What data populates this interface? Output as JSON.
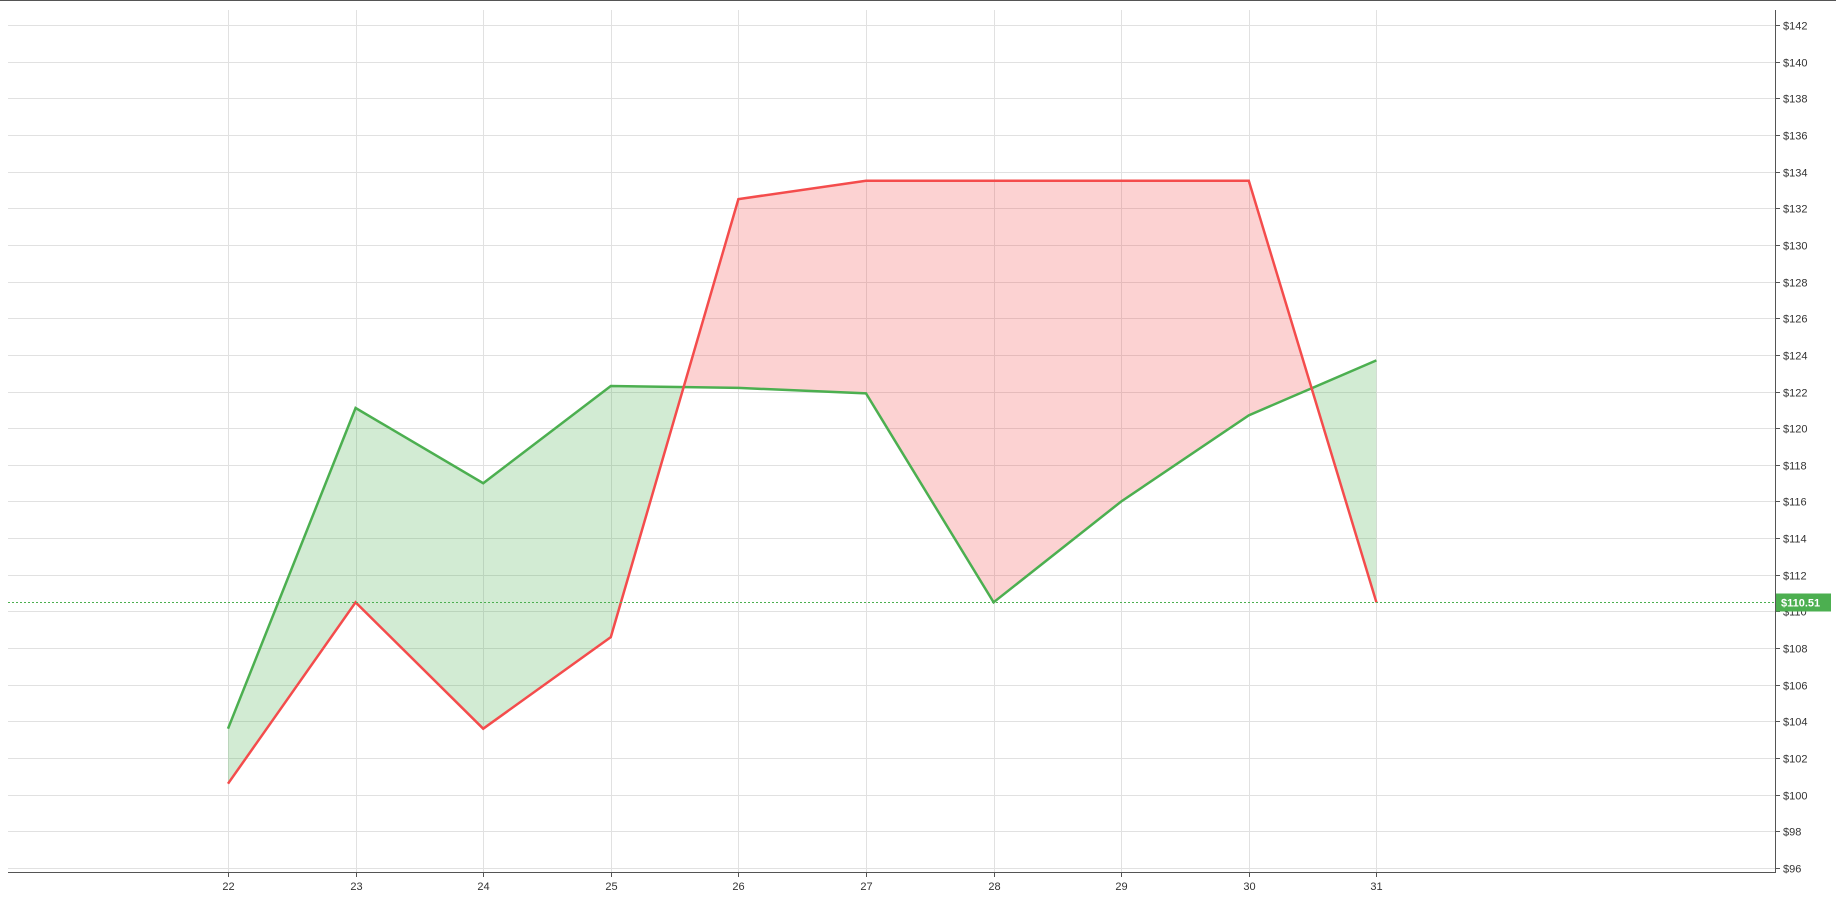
{
  "chart_data": {
    "type": "line",
    "title": "",
    "xlabel": "",
    "ylabel": "",
    "categories": [
      "22",
      "23",
      "24",
      "25",
      "26",
      "27",
      "28",
      "29",
      "30",
      "31"
    ],
    "series": [
      {
        "color": "#4caf50",
        "values": [
          103.6,
          121.1,
          117.0,
          122.3,
          122.2,
          121.9,
          110.5,
          116.0,
          120.7,
          123.7
        ]
      },
      {
        "color": "#f44c4c",
        "values": [
          100.6,
          110.5,
          103.6,
          108.6,
          132.5,
          133.5,
          133.5,
          133.5,
          133.5,
          110.5
        ]
      }
    ],
    "fill_between": {
      "above_color": "#4caf50",
      "below_color": "#f44c4c",
      "opacity": 0.25
    },
    "ylim": [
      96,
      142
    ],
    "y_ticks": [
      "$96",
      "$98",
      "$100",
      "$102",
      "$104",
      "$106",
      "$108",
      "$110",
      "$112",
      "$114",
      "$116",
      "$118",
      "$120",
      "$122",
      "$124",
      "$126",
      "$128",
      "$130",
      "$132",
      "$134",
      "$136",
      "$138",
      "$140",
      "$142"
    ],
    "y_tick_values": [
      96,
      98,
      100,
      102,
      104,
      106,
      108,
      110,
      112,
      114,
      116,
      118,
      120,
      122,
      124,
      126,
      128,
      130,
      132,
      134,
      136,
      138,
      140,
      142
    ],
    "y_axis_position": "right",
    "grid": true,
    "current_price": {
      "value": 110.51,
      "label": "$110.51",
      "color": "#4caf50"
    }
  }
}
